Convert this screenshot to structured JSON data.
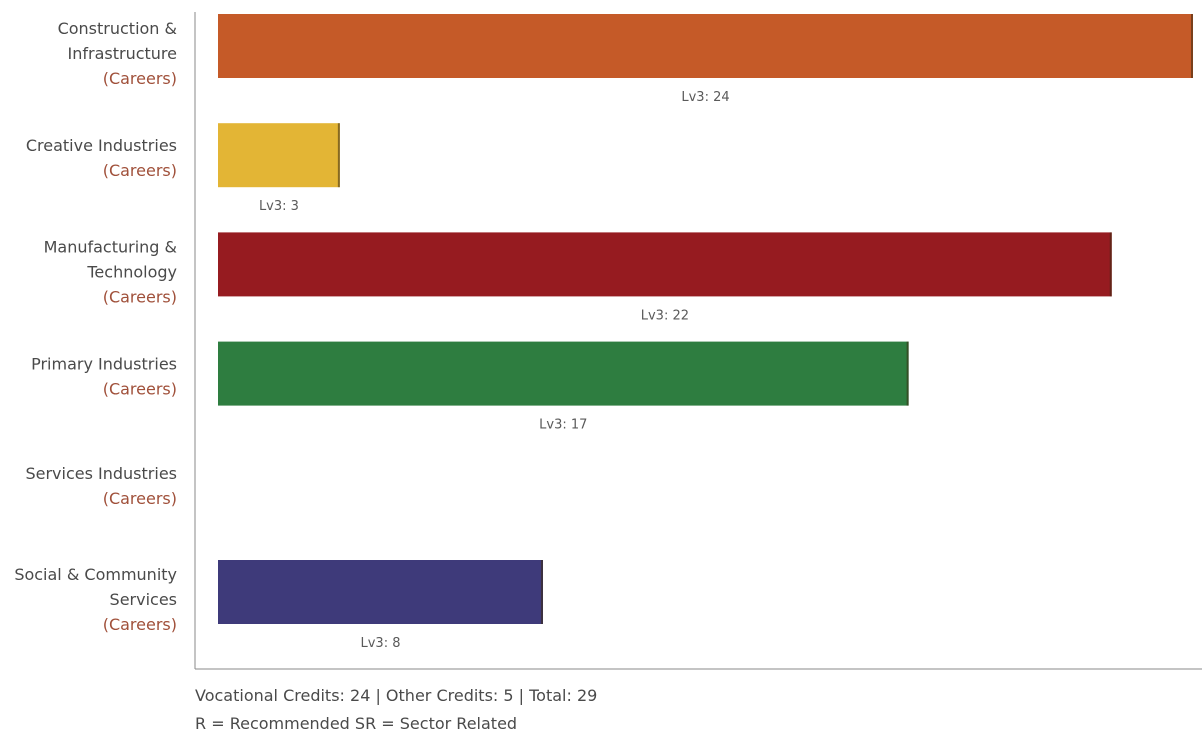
{
  "chart_data": {
    "type": "bar",
    "orientation": "horizontal",
    "categories": [
      [
        "Construction &",
        "Infrastructure"
      ],
      [
        "Creative Industries"
      ],
      [
        "Manufacturing &",
        "Technology"
      ],
      [
        "Primary Industries"
      ],
      [
        "Services Industries"
      ],
      [
        "Social & Community",
        "Services"
      ]
    ],
    "category_sublabel": "(Careers)",
    "values": [
      24,
      3,
      22,
      17,
      null,
      8
    ],
    "bar_labels": [
      "Lv3: 24",
      "Lv3: 3",
      "Lv3: 22",
      "Lv3: 17",
      "",
      "Lv3: 8"
    ],
    "colors": [
      "#c55a28",
      "#e3b535",
      "#961b20",
      "#2e7d40",
      "#000000",
      "#3e3a7a"
    ],
    "xlim": [
      0,
      24
    ],
    "grid": false,
    "legend": "none"
  },
  "footer": {
    "credits": "Vocational Credits: 24 | Other Credits: 5 | Total: 29",
    "legend": "R = Recommended SR = Sector Related"
  }
}
